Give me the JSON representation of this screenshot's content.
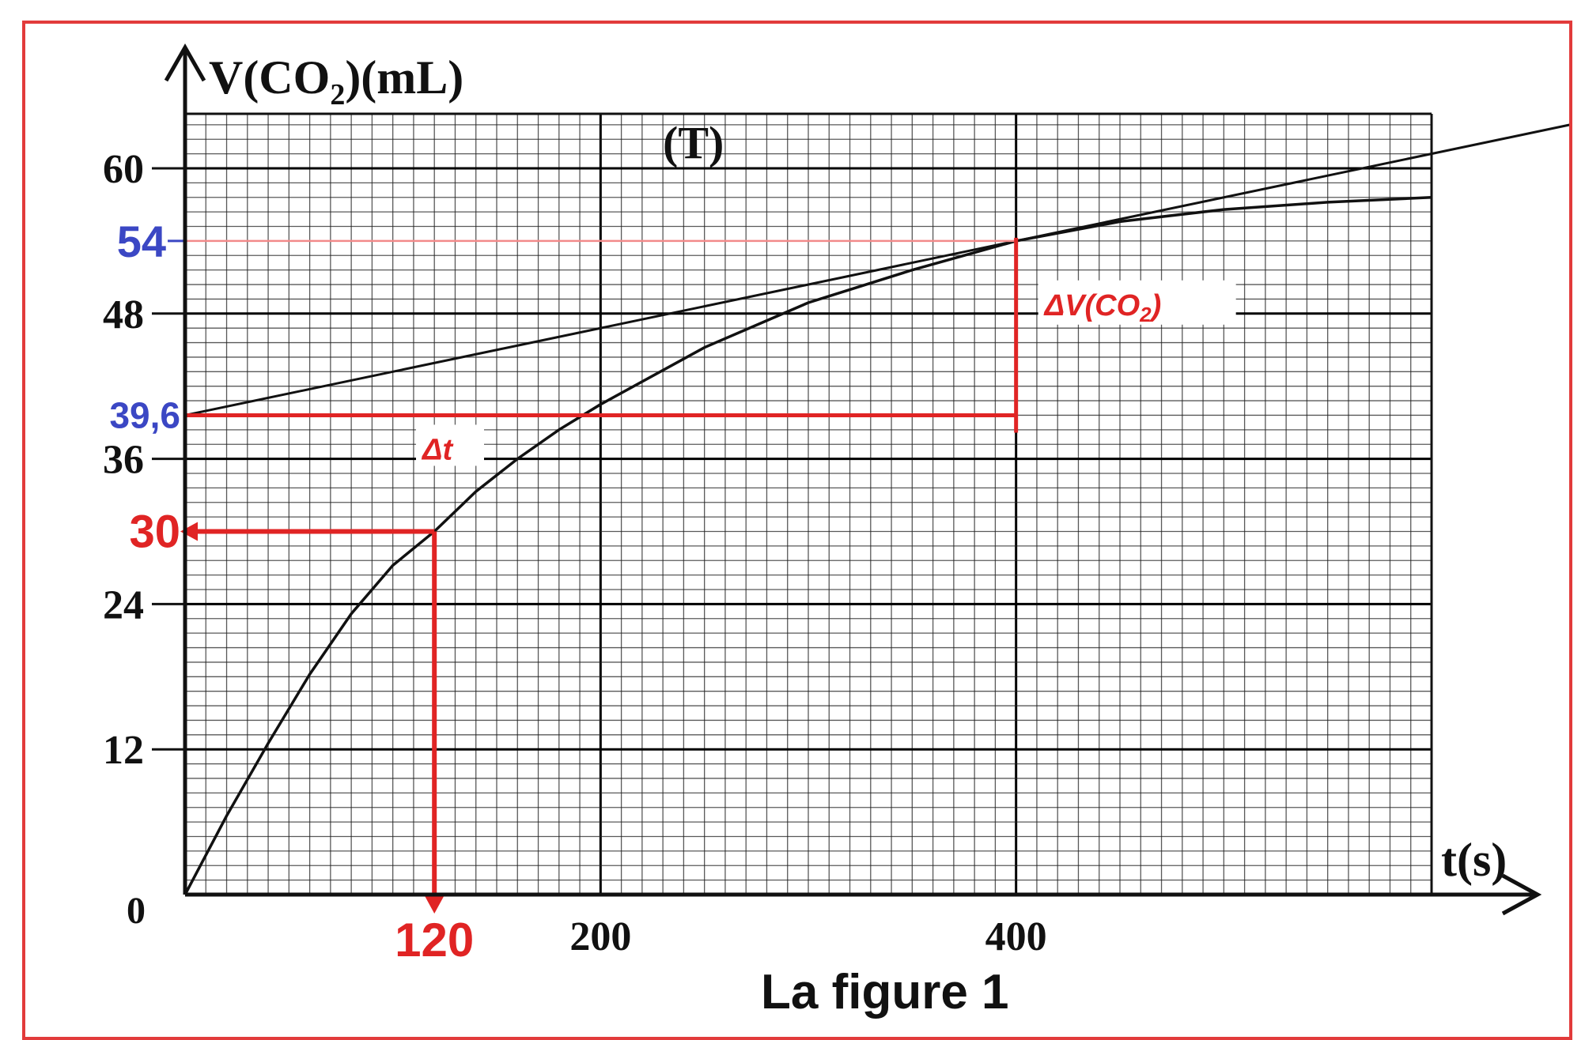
{
  "chart_data": {
    "type": "line",
    "title": "",
    "caption": "La figure 1",
    "xlabel": "t(s)",
    "ylabel_main": "V(CO",
    "ylabel_sub": "2",
    "ylabel_tail": ")(mL)",
    "xlim": [
      0,
      600
    ],
    "ylim": [
      0,
      65
    ],
    "x_ticks": [
      "200",
      "400"
    ],
    "y_ticks": [
      "60",
      "48",
      "36",
      "24",
      "12"
    ],
    "origin_label": "0",
    "grid": true,
    "series": [
      {
        "x": [
          0,
          20,
          40,
          60,
          80,
          100,
          120,
          140,
          160,
          180,
          200,
          250,
          300,
          350,
          400,
          450,
          500,
          550,
          600
        ],
        "values": [
          0,
          6.5,
          12.5,
          18.2,
          23.2,
          27.2,
          30,
          33.3,
          36.0,
          38.4,
          40.5,
          45.2,
          48.9,
          51.6,
          54,
          55.6,
          56.6,
          57.2,
          57.6
        ]
      }
    ],
    "tangent": {
      "label": "(T)",
      "point": [
        400,
        54
      ],
      "intercept": 39.6,
      "x_end": 690
    },
    "annotations": {
      "y54": "54",
      "y396": "39,6",
      "y30": "30",
      "x120": "120",
      "delta_v": "ΔV(CO",
      "delta_v_sub": "2",
      "delta_v_tail": ")",
      "delta_t": "Δt"
    },
    "colors": {
      "axis": "#111111",
      "grid_minor": "#222222",
      "grid_major": "#000000",
      "annotation_red": "#e02424",
      "annotation_blue": "#3b47c4",
      "frame": "#e23b3b"
    }
  }
}
